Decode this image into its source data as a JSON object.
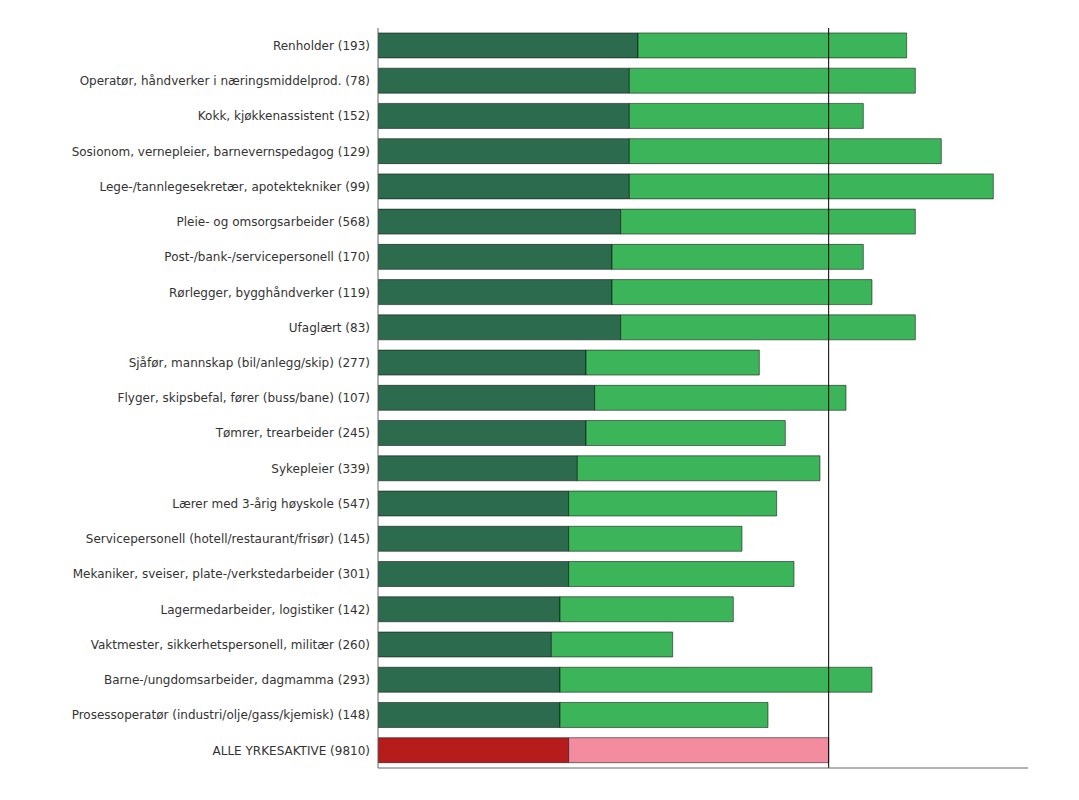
{
  "chart_data": {
    "type": "bar",
    "orientation": "horizontal",
    "stacked": true,
    "grid": false,
    "tick_labels": "y",
    "categories": [
      "Renholder (193)",
      "Operatør, håndverker i næringsmiddelprod. (78)",
      "Kokk, kjøkkenassistent (152)",
      "Sosionom, vernepleier, barnevernspedagog (129)",
      "Lege-/tannlegesekretær, apotektekniker (99)",
      "Pleie- og omsorgsarbeider (568)",
      "Post-/bank-/servicepersonell (170)",
      "Rørlegger, bygghåndverker (119)",
      "Ufaglært (83)",
      "Sjåfør, mannskap (bil/anlegg/skip) (277)",
      "Flyger, skipsbefal, fører (buss/bane) (107)",
      "Tømrer, trearbeider (245)",
      "Sykepleier (339)",
      "Lærer med 3-årig høyskole (547)",
      "Servicepersonell (hotell/restaurant/frisør) (145)",
      "Mekaniker, sveiser, plate-/verkstedarbeider (301)",
      "Lagermedarbeider, logistiker (142)",
      "Vaktmester, sikkerhetspersonell, militær (260)",
      "Barne-/ungdomsarbeider, dagmamma (293)",
      "Prosessoperatør (industri/olje/gass/kjemisk) (148)",
      "ALLE YRKESAKTIVE (9810)"
    ],
    "series": [
      {
        "values": [
          30,
          29,
          29,
          29,
          29,
          28,
          27,
          27,
          28,
          24,
          25,
          24,
          23,
          22,
          22,
          22,
          21,
          20,
          21,
          21,
          22
        ],
        "colors": [
          "#2d6b4e",
          "#2d6b4e",
          "#2d6b4e",
          "#2d6b4e",
          "#2d6b4e",
          "#2d6b4e",
          "#2d6b4e",
          "#2d6b4e",
          "#2d6b4e",
          "#2d6b4e",
          "#2d6b4e",
          "#2d6b4e",
          "#2d6b4e",
          "#2d6b4e",
          "#2d6b4e",
          "#2d6b4e",
          "#2d6b4e",
          "#2d6b4e",
          "#2d6b4e",
          "#2d6b4e",
          "#b71c1c"
        ]
      },
      {
        "values": [
          31,
          33,
          27,
          36,
          42,
          34,
          29,
          30,
          34,
          20,
          29,
          23,
          28,
          24,
          20,
          26,
          20,
          14,
          36,
          24,
          30
        ],
        "colors": [
          "#3cb55a",
          "#3cb55a",
          "#3cb55a",
          "#3cb55a",
          "#3cb55a",
          "#3cb55a",
          "#3cb55a",
          "#3cb55a",
          "#3cb55a",
          "#3cb55a",
          "#3cb55a",
          "#3cb55a",
          "#3cb55a",
          "#3cb55a",
          "#3cb55a",
          "#3cb55a",
          "#3cb55a",
          "#3cb55a",
          "#3cb55a",
          "#3cb55a",
          "#f48ca0"
        ]
      }
    ],
    "xlim": [
      0,
      75
    ],
    "reference_line_x": 52
  }
}
